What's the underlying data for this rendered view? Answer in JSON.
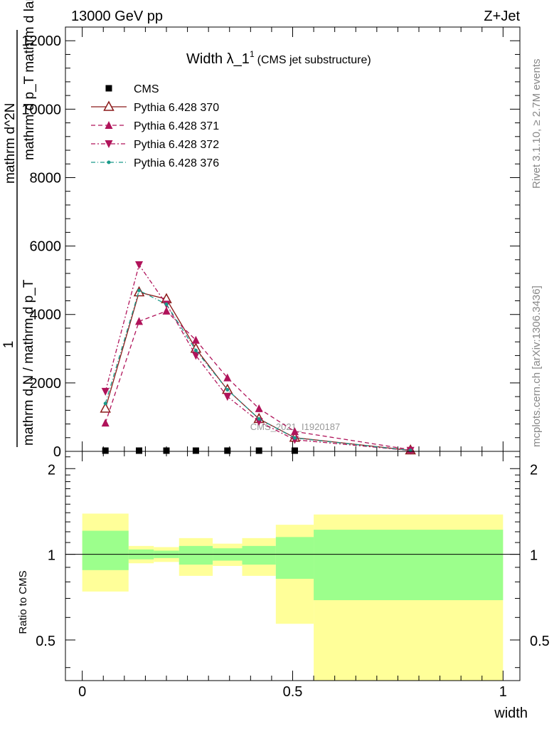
{
  "header": {
    "left": "13000 GeV pp",
    "right": "Z+Jet"
  },
  "side": {
    "rivet": "Rivet 3.1.10, ≥ 2.7M events",
    "mcplots": "mcplots.cern.ch [arXiv:1306.3436]"
  },
  "ylabel_main": {
    "numerator": "1",
    "denominator": "mathrm d N / mathrm d p_T mathrm d^2N / mathrm d p_T mathrm d lambda",
    "line1": "mathrm d^2N",
    "line2": "mathrm d p_T mathrm d lambda",
    "line3": "mathrm d N / mathrm d p_T"
  },
  "ylabel_ratio": "Ratio to CMS",
  "xlabel": "width",
  "watermark": "CMS_2021_I1920187",
  "colors": {
    "cms": "#000000",
    "p370": "#8b1a1a",
    "p371": "#b0135a",
    "p372": "#b0135a",
    "p376": "#1a9a8a",
    "band_inner": "#9cff8c",
    "band_outer": "#ffff99"
  },
  "chart_data": [
    {
      "type": "line",
      "title": "Width λ_1",
      "title_sup": "1",
      "title_suffix": "(CMS jet substructure)",
      "xlim": [
        -0.04,
        1.04
      ],
      "ylim": [
        0,
        12400
      ],
      "yticks": [
        0,
        2000,
        4000,
        6000,
        8000,
        10000,
        12000
      ],
      "ytick_labels": [
        "0",
        "2000",
        "4000",
        "6000",
        "8000",
        "10000",
        "12000"
      ],
      "legend_position": "top-left",
      "series": [
        {
          "name": "CMS",
          "marker": "square",
          "x": [
            0.055,
            0.135,
            0.2,
            0.27,
            0.345,
            0.42,
            0.505
          ],
          "y": [
            0,
            0,
            0,
            0,
            0,
            0,
            0
          ]
        },
        {
          "name": "Pythia 6.428 370",
          "marker": "triangle-up-open",
          "dash": "",
          "x": [
            0.055,
            0.135,
            0.2,
            0.27,
            0.345,
            0.42,
            0.505,
            0.78
          ],
          "y": [
            1250,
            4650,
            4450,
            3000,
            1800,
            950,
            400,
            30
          ]
        },
        {
          "name": "Pythia 6.428 371",
          "marker": "triangle-up",
          "dash": "6,4",
          "x": [
            0.055,
            0.135,
            0.2,
            0.27,
            0.345,
            0.42,
            0.505,
            0.78
          ],
          "y": [
            830,
            3800,
            4100,
            3250,
            2150,
            1250,
            580,
            50
          ]
        },
        {
          "name": "Pythia 6.428 372",
          "marker": "triangle-down",
          "dash": "6,3,2,3",
          "x": [
            0.055,
            0.135,
            0.2,
            0.27,
            0.345,
            0.42,
            0.505,
            0.78
          ],
          "y": [
            1750,
            5450,
            4300,
            2800,
            1600,
            870,
            340,
            25
          ]
        },
        {
          "name": "Pythia 6.428 376",
          "marker": "dot",
          "dash": "6,3,1,3",
          "x": [
            0.055,
            0.135,
            0.2,
            0.27,
            0.345,
            0.42,
            0.505,
            0.78
          ],
          "y": [
            1400,
            4700,
            4300,
            2950,
            1800,
            950,
            390,
            28
          ]
        }
      ]
    },
    {
      "type": "area",
      "ylabel": "Ratio to CMS",
      "xlabel": "width",
      "xlim": [
        -0.04,
        1.04
      ],
      "ylim": [
        0.36,
        2.3
      ],
      "xticks": [
        0,
        0.5,
        1
      ],
      "xtick_labels": [
        "0",
        "0.5",
        "1"
      ],
      "yticks": [
        0.5,
        1,
        2
      ],
      "ytick_labels": [
        "0.5",
        "1",
        "2"
      ],
      "bins": [
        0,
        0.11,
        0.17,
        0.23,
        0.31,
        0.38,
        0.46,
        0.55,
        1.0
      ],
      "inner_band": {
        "lo": [
          0.88,
          0.96,
          0.97,
          0.92,
          0.95,
          0.92,
          0.82,
          0.69
        ],
        "hi": [
          1.21,
          1.04,
          1.03,
          1.07,
          1.05,
          1.07,
          1.15,
          1.22
        ]
      },
      "outer_band": {
        "lo": [
          0.74,
          0.93,
          0.94,
          0.84,
          0.91,
          0.84,
          0.57,
          0.36
        ],
        "hi": [
          1.39,
          1.07,
          1.06,
          1.14,
          1.09,
          1.14,
          1.27,
          1.38
        ]
      },
      "reference": 1
    }
  ]
}
